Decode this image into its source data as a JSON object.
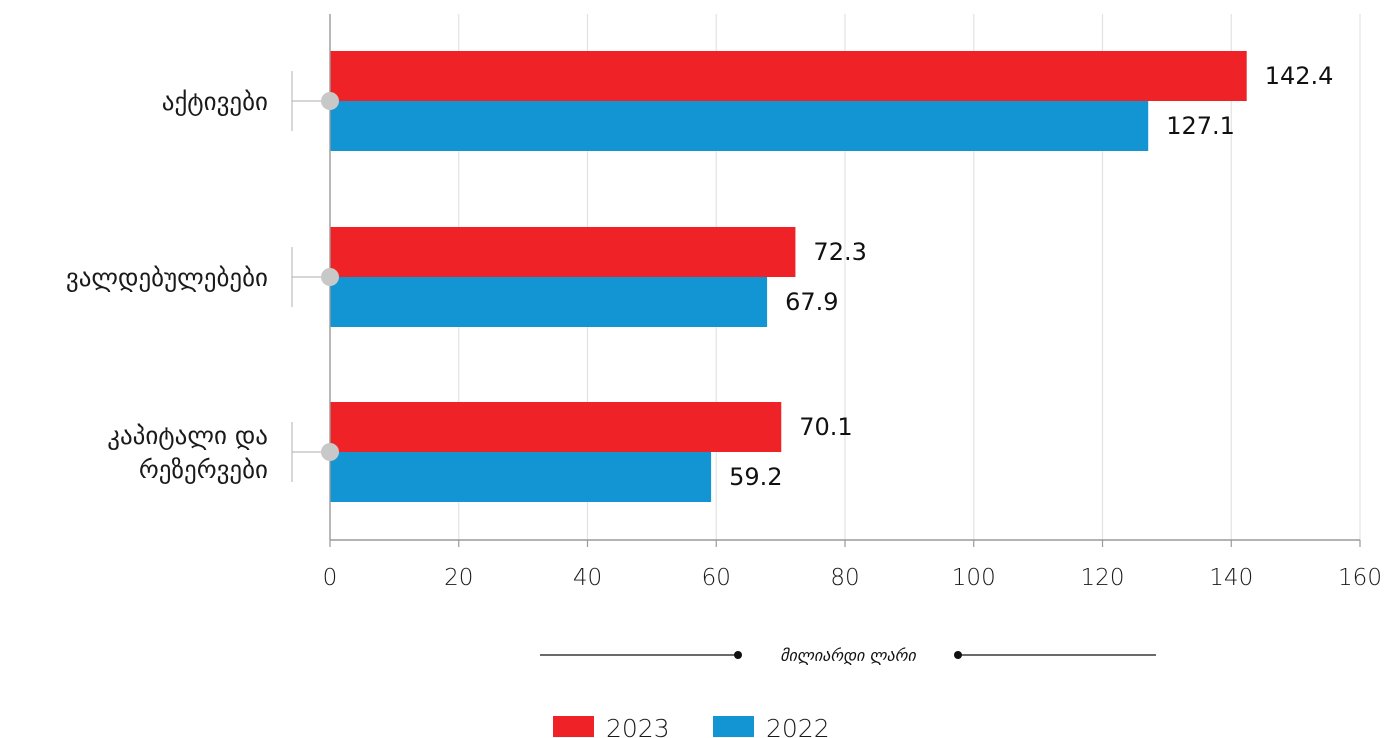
{
  "chart_data": {
    "type": "bar",
    "orientation": "horizontal",
    "categories": [
      [
        "აქტივები"
      ],
      [
        "ვალდებულებები"
      ],
      [
        "კაპიტალი და",
        "რეზერვები"
      ]
    ],
    "series": [
      {
        "name": "2023",
        "color": "#ee2227",
        "values": [
          142.4,
          72.3,
          70.1
        ]
      },
      {
        "name": "2022",
        "color": "#1295d2",
        "values": [
          127.1,
          67.9,
          59.2
        ]
      }
    ],
    "value_labels": [
      [
        "142.4",
        "72.3",
        "70.1"
      ],
      [
        "127.1",
        "67.9",
        "59.2"
      ]
    ],
    "xlim": [
      0,
      160
    ],
    "xticks": [
      0,
      20,
      40,
      60,
      80,
      100,
      120,
      140,
      160
    ],
    "xlabel": "მილიარდი ლარი",
    "grid": true,
    "legend_position": "bottom-center"
  },
  "colors": {
    "grid": "#e3e3e3",
    "axis": "#9a9a9a",
    "marker": "#c8c8c8"
  }
}
